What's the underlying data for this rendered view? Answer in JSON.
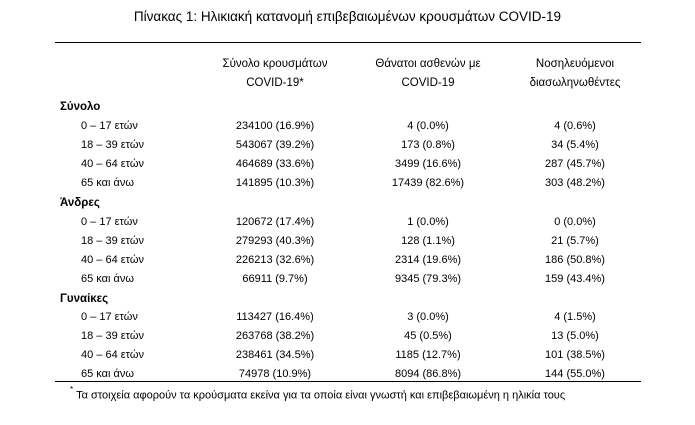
{
  "title": "Πίνακας 1: Ηλικιακή κατανομή επιβεβαιωμένων κρουσμάτων COVID-19",
  "columns": [
    {
      "line1": "Σύνολο κρουσμάτων",
      "line2": "COVID-19*"
    },
    {
      "line1": "Θάνατοι ασθενών με",
      "line2": "COVID-19"
    },
    {
      "line1": "Νοσηλευόμενοι",
      "line2": "διασωληνωθέντες"
    }
  ],
  "groups": [
    {
      "name": "Σύνολο",
      "rows": [
        {
          "label": "0 – 17 ετών",
          "cases": "234100 (16.9%)",
          "deaths": "4 (0.0%)",
          "intubated": "4 (0.6%)"
        },
        {
          "label": "18 – 39 ετών",
          "cases": "543067 (39.2%)",
          "deaths": "173 (0.8%)",
          "intubated": "34 (5.4%)"
        },
        {
          "label": "40 – 64 ετών",
          "cases": "464689 (33.6%)",
          "deaths": "3499 (16.6%)",
          "intubated": "287 (45.7%)"
        },
        {
          "label": "65 και άνω",
          "cases": "141895 (10.3%)",
          "deaths": "17439 (82.6%)",
          "intubated": "303 (48.2%)"
        }
      ]
    },
    {
      "name": "Άνδρες",
      "rows": [
        {
          "label": "0 – 17 ετών",
          "cases": "120672 (17.4%)",
          "deaths": "1 (0.0%)",
          "intubated": "0 (0.0%)"
        },
        {
          "label": "18 – 39 ετών",
          "cases": "279293 (40.3%)",
          "deaths": "128 (1.1%)",
          "intubated": "21 (5.7%)"
        },
        {
          "label": "40 – 64 ετών",
          "cases": "226213 (32.6%)",
          "deaths": "2314 (19.6%)",
          "intubated": "186 (50.8%)"
        },
        {
          "label": "65 και άνω",
          "cases": "66911 (9.7%)",
          "deaths": "9345 (79.3%)",
          "intubated": "159 (43.4%)"
        }
      ]
    },
    {
      "name": "Γυναίκες",
      "rows": [
        {
          "label": "0 – 17 ετών",
          "cases": "113427 (16.4%)",
          "deaths": "3 (0.0%)",
          "intubated": "4 (1.5%)"
        },
        {
          "label": "18 – 39 ετών",
          "cases": "263768 (38.2%)",
          "deaths": "45 (0.5%)",
          "intubated": "13 (5.0%)"
        },
        {
          "label": "40 – 64 ετών",
          "cases": "238461 (34.5%)",
          "deaths": "1185 (12.7%)",
          "intubated": "101 (38.5%)"
        },
        {
          "label": "65 και άνω",
          "cases": "74978 (10.9%)",
          "deaths": "8094 (86.8%)",
          "intubated": "144 (55.0%)"
        }
      ]
    }
  ],
  "footnote": {
    "marker": "*",
    "text": "Τα στοιχεία αφορούν τα κρούσματα εκείνα για τα οποία είναι γνωστή και επιβεβαιωμένη η ηλικία τους"
  }
}
